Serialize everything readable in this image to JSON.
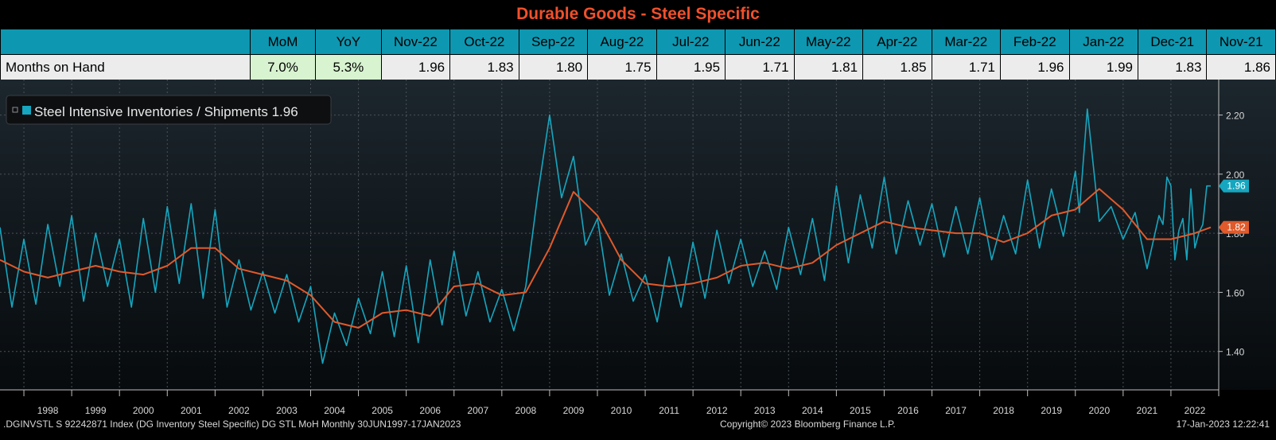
{
  "title": "Durable Goods - Steel Specific",
  "table": {
    "headers": [
      "",
      "MoM",
      "YoY",
      "Nov-22",
      "Oct-22",
      "Sep-22",
      "Aug-22",
      "Jul-22",
      "Jun-22",
      "May-22",
      "Apr-22",
      "Mar-22",
      "Feb-22",
      "Jan-22",
      "Dec-21",
      "Nov-21"
    ],
    "row": [
      "Months on Hand",
      "7.0%",
      "5.3%",
      "1.96",
      "1.83",
      "1.80",
      "1.75",
      "1.95",
      "1.71",
      "1.81",
      "1.85",
      "1.71",
      "1.96",
      "1.99",
      "1.83",
      "1.86"
    ]
  },
  "legend": {
    "label": "Steel Intensive Inventories / Shipments 1.96"
  },
  "colors": {
    "series": "#16a6bf",
    "average": "#e05a2b",
    "header": "#0e97b0",
    "title": "#f0502b"
  },
  "footer": {
    "left": ".DGINVSTL S 92242871 Index (DG Inventory Steel Specific) DG STL MoH  Monthly 30JUN1997-17JAN2023",
    "center": "Copyright© 2023 Bloomberg Finance L.P.",
    "right": "17-Jan-2023  12:22:41"
  },
  "chart_data": {
    "type": "line",
    "xlabel": "",
    "ylabel": "",
    "x_ticks": [
      "1998",
      "1999",
      "2000",
      "2001",
      "2002",
      "2003",
      "2004",
      "2005",
      "2006",
      "2007",
      "2008",
      "2009",
      "2010",
      "2011",
      "2012",
      "2013",
      "2014",
      "2015",
      "2016",
      "2017",
      "2018",
      "2019",
      "2020",
      "2021",
      "2022"
    ],
    "y_ticks": [
      "1.40",
      "1.60",
      "1.80",
      "2.00",
      "2.20"
    ],
    "ylim": [
      1.27,
      2.32
    ],
    "xlim": [
      1997.5,
      2023.0
    ],
    "grid": true,
    "legend_position": "top-left",
    "last_value_labels": [
      {
        "series": "Steel Intensive Inventories / Shipments",
        "value": "1.96"
      },
      {
        "series": "average",
        "value": "1.82"
      }
    ],
    "series": [
      {
        "name": "Steel Intensive Inventories / Shipments",
        "x": [
          1997.5,
          1997.75,
          1998.0,
          1998.25,
          1998.5,
          1998.75,
          1999.0,
          1999.25,
          1999.5,
          1999.75,
          2000.0,
          2000.25,
          2000.5,
          2000.75,
          2001.0,
          2001.25,
          2001.5,
          2001.75,
          2002.0,
          2002.25,
          2002.5,
          2002.75,
          2003.0,
          2003.25,
          2003.5,
          2003.75,
          2004.0,
          2004.25,
          2004.5,
          2004.75,
          2005.0,
          2005.25,
          2005.5,
          2005.75,
          2006.0,
          2006.25,
          2006.5,
          2006.75,
          2007.0,
          2007.25,
          2007.5,
          2007.75,
          2008.0,
          2008.25,
          2008.5,
          2008.75,
          2009.0,
          2009.25,
          2009.5,
          2009.75,
          2010.0,
          2010.25,
          2010.5,
          2010.75,
          2011.0,
          2011.25,
          2011.5,
          2011.75,
          2012.0,
          2012.25,
          2012.5,
          2012.75,
          2013.0,
          2013.25,
          2013.5,
          2013.75,
          2014.0,
          2014.25,
          2014.5,
          2014.75,
          2015.0,
          2015.25,
          2015.5,
          2015.75,
          2016.0,
          2016.25,
          2016.5,
          2016.75,
          2017.0,
          2017.25,
          2017.5,
          2017.75,
          2018.0,
          2018.25,
          2018.5,
          2018.75,
          2019.0,
          2019.25,
          2019.5,
          2019.75,
          2020.0,
          2020.083,
          2020.25,
          2020.5,
          2020.75,
          2021.0,
          2021.25,
          2021.5,
          2021.75,
          2021.833,
          2021.917,
          2022.0,
          2022.083,
          2022.167,
          2022.25,
          2022.333,
          2022.417,
          2022.5,
          2022.583,
          2022.667,
          2022.75,
          2022.833
        ],
        "values": [
          1.82,
          1.55,
          1.78,
          1.56,
          1.83,
          1.62,
          1.86,
          1.57,
          1.8,
          1.62,
          1.78,
          1.55,
          1.85,
          1.6,
          1.89,
          1.63,
          1.9,
          1.58,
          1.88,
          1.55,
          1.71,
          1.54,
          1.67,
          1.53,
          1.66,
          1.5,
          1.62,
          1.36,
          1.53,
          1.42,
          1.58,
          1.46,
          1.67,
          1.45,
          1.69,
          1.43,
          1.71,
          1.49,
          1.74,
          1.52,
          1.67,
          1.5,
          1.61,
          1.47,
          1.62,
          1.93,
          2.2,
          1.92,
          2.06,
          1.76,
          1.85,
          1.59,
          1.73,
          1.57,
          1.66,
          1.5,
          1.72,
          1.55,
          1.77,
          1.58,
          1.81,
          1.63,
          1.78,
          1.62,
          1.74,
          1.61,
          1.82,
          1.66,
          1.85,
          1.64,
          1.96,
          1.7,
          1.93,
          1.75,
          1.99,
          1.73,
          1.91,
          1.76,
          1.9,
          1.72,
          1.89,
          1.73,
          1.92,
          1.71,
          1.86,
          1.73,
          1.98,
          1.75,
          1.95,
          1.79,
          2.01,
          1.87,
          2.22,
          1.84,
          1.89,
          1.78,
          1.87,
          1.68,
          1.86,
          1.83,
          1.99,
          1.96,
          1.71,
          1.81,
          1.85,
          1.71,
          1.95,
          1.75,
          1.8,
          1.83,
          1.96,
          1.96
        ]
      },
      {
        "name": "",
        "x": [
          1997.5,
          1998.0,
          1998.5,
          1999.0,
          1999.5,
          2000.0,
          2000.5,
          2001.0,
          2001.5,
          2002.0,
          2002.5,
          2003.0,
          2003.5,
          2004.0,
          2004.5,
          2005.0,
          2005.5,
          2006.0,
          2006.5,
          2007.0,
          2007.5,
          2008.0,
          2008.5,
          2009.0,
          2009.5,
          2010.0,
          2010.5,
          2011.0,
          2011.5,
          2012.0,
          2012.5,
          2013.0,
          2013.5,
          2014.0,
          2014.5,
          2015.0,
          2015.5,
          2016.0,
          2016.5,
          2017.0,
          2017.5,
          2018.0,
          2018.5,
          2019.0,
          2019.5,
          2020.0,
          2020.5,
          2021.0,
          2021.5,
          2022.0,
          2022.5,
          2022.833
        ],
        "values": [
          1.71,
          1.67,
          1.65,
          1.67,
          1.69,
          1.67,
          1.66,
          1.69,
          1.75,
          1.75,
          1.68,
          1.66,
          1.64,
          1.59,
          1.5,
          1.48,
          1.53,
          1.54,
          1.52,
          1.62,
          1.63,
          1.59,
          1.6,
          1.75,
          1.94,
          1.86,
          1.71,
          1.63,
          1.62,
          1.63,
          1.65,
          1.69,
          1.7,
          1.68,
          1.7,
          1.76,
          1.8,
          1.84,
          1.82,
          1.81,
          1.8,
          1.8,
          1.77,
          1.8,
          1.86,
          1.88,
          1.95,
          1.88,
          1.78,
          1.78,
          1.8,
          1.82
        ]
      }
    ]
  }
}
